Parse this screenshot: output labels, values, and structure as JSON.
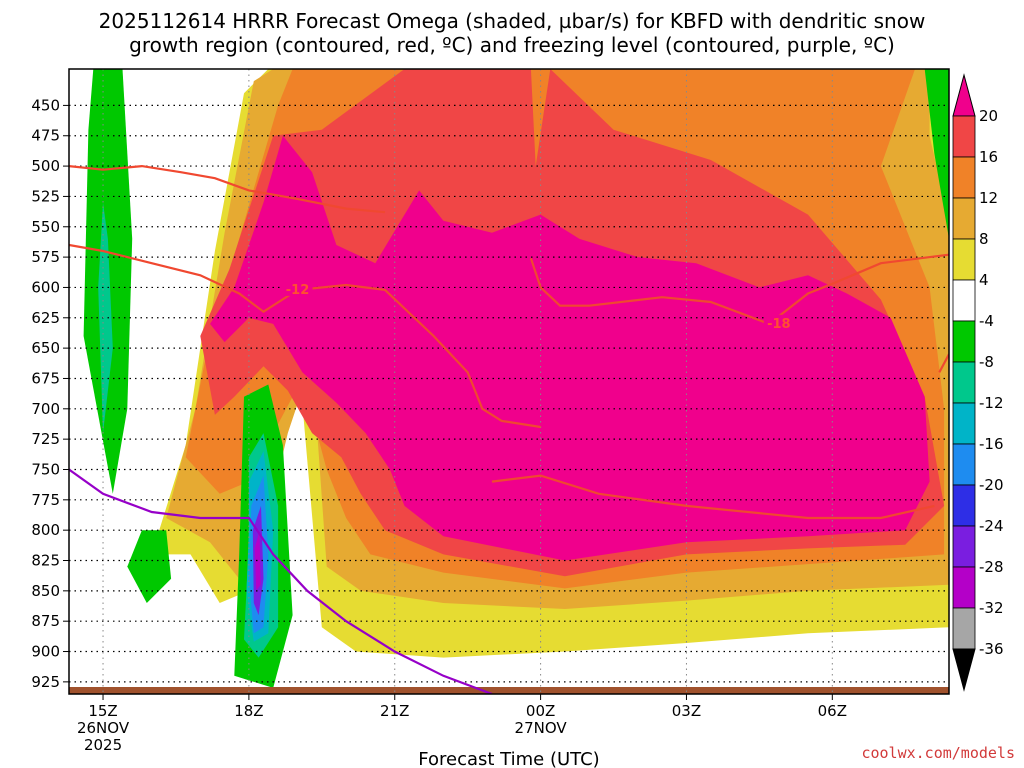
{
  "chart_data": {
    "type": "heatmap",
    "title_lines": [
      "2025112614 HRRR Forecast Omega (shaded, µbar/s) for KBFD with dendritic snow",
      "growth region (contoured, red, ºC) and freezing level (contoured, purple, ºC)"
    ],
    "xlabel": "Forecast Time (UTC)",
    "credit": "coolwx.com/models",
    "x_range_hours": [
      14.3,
      32.4
    ],
    "y_range_hpa": [
      420,
      935
    ],
    "x_ticks": [
      {
        "hour": 15,
        "lines": [
          "15Z",
          "26NOV",
          "2025"
        ]
      },
      {
        "hour": 18,
        "lines": [
          "18Z"
        ]
      },
      {
        "hour": 21,
        "lines": [
          "21Z"
        ]
      },
      {
        "hour": 24,
        "lines": [
          "00Z",
          "27NOV"
        ]
      },
      {
        "hour": 27,
        "lines": [
          "03Z"
        ]
      },
      {
        "hour": 30,
        "lines": [
          "06Z"
        ]
      }
    ],
    "y_ticks": [
      450,
      475,
      500,
      525,
      550,
      575,
      600,
      625,
      650,
      675,
      700,
      725,
      750,
      775,
      800,
      825,
      850,
      875,
      900,
      925
    ],
    "colorbar": {
      "levels": [
        -36,
        -32,
        -28,
        -24,
        -20,
        -16,
        -12,
        -8,
        -4,
        4,
        8,
        12,
        16,
        20
      ],
      "labels": [
        "20",
        "16",
        "12",
        "8",
        "4",
        "-4",
        "-8",
        "-12",
        "-16",
        "-20",
        "-24",
        "-28",
        "-32",
        "-36"
      ],
      "colors": {
        "below_-36": "#000000",
        "-36_-32": "#a6a6a6",
        "-32_-28": "#b400c8",
        "-28_-24": "#7a1ee0",
        "-24_-20": "#2e2ee6",
        "-20_-16": "#1e8cf0",
        "-16_-12": "#00b4c8",
        "-12_-8": "#00c88c",
        "-8_-4": "#00c800",
        "-4_4": "#ffffff",
        "4_8": "#e6dc32",
        "8_12": "#e6aa32",
        "12_16": "#f08228",
        "16_20": "#f04646",
        "above_20": "#f0008c"
      }
    },
    "omega_regions": [
      {
        "level": "4_8",
        "points": [
          [
            16.0,
            820
          ],
          [
            16.7,
            730
          ],
          [
            17.3,
            570
          ],
          [
            17.9,
            440
          ],
          [
            18.4,
            420
          ],
          [
            32.4,
            420
          ],
          [
            32.4,
            880
          ],
          [
            29.5,
            885
          ],
          [
            27.0,
            893
          ],
          [
            24.5,
            900
          ],
          [
            22.0,
            905
          ],
          [
            20.2,
            900
          ],
          [
            19.5,
            880
          ],
          [
            19.0,
            650
          ],
          [
            18.5,
            780
          ],
          [
            18.0,
            850
          ],
          [
            17.4,
            860
          ],
          [
            16.8,
            820
          ]
        ]
      },
      {
        "level": "8_12",
        "points": [
          [
            16.3,
            790
          ],
          [
            16.9,
            700
          ],
          [
            17.5,
            555
          ],
          [
            18.1,
            430
          ],
          [
            18.5,
            420
          ],
          [
            32.0,
            420
          ],
          [
            32.0,
            475
          ],
          [
            32.4,
            545
          ],
          [
            32.4,
            845
          ],
          [
            29.5,
            850
          ],
          [
            27.0,
            858
          ],
          [
            24.5,
            865
          ],
          [
            22.0,
            860
          ],
          [
            20.3,
            850
          ],
          [
            19.6,
            830
          ],
          [
            19.3,
            660
          ],
          [
            18.8,
            720
          ],
          [
            18.3,
            805
          ],
          [
            17.8,
            840
          ],
          [
            17.2,
            810
          ]
        ]
      },
      {
        "level": "12_16",
        "points": [
          [
            16.7,
            740
          ],
          [
            17.2,
            640
          ],
          [
            17.8,
            560
          ],
          [
            18.6,
            450
          ],
          [
            18.9,
            420
          ],
          [
            31.7,
            420
          ],
          [
            31.0,
            500
          ],
          [
            32.0,
            600
          ],
          [
            32.3,
            700
          ],
          [
            32.3,
            820
          ],
          [
            29.5,
            828
          ],
          [
            27.0,
            835
          ],
          [
            24.5,
            848
          ],
          [
            22.0,
            835
          ],
          [
            20.5,
            820
          ],
          [
            20.0,
            790
          ],
          [
            19.6,
            750
          ],
          [
            19.3,
            705
          ],
          [
            18.9,
            690
          ],
          [
            18.5,
            720
          ],
          [
            18.0,
            760
          ],
          [
            17.4,
            770
          ]
        ]
      },
      {
        "level": "16_20",
        "points": [
          [
            17.0,
            640
          ],
          [
            17.6,
            585
          ],
          [
            18.5,
            475
          ],
          [
            19.5,
            470
          ],
          [
            21.2,
            420
          ],
          [
            23.8,
            420
          ],
          [
            23.9,
            500
          ],
          [
            24.2,
            420
          ],
          [
            25.5,
            470
          ],
          [
            27.5,
            495
          ],
          [
            29.5,
            540
          ],
          [
            31.0,
            610
          ],
          [
            31.9,
            690
          ],
          [
            32.3,
            780
          ],
          [
            31.5,
            812
          ],
          [
            29.5,
            815
          ],
          [
            27.0,
            820
          ],
          [
            24.5,
            838
          ],
          [
            22.0,
            820
          ],
          [
            20.8,
            800
          ],
          [
            20.3,
            770
          ],
          [
            19.9,
            740
          ],
          [
            19.3,
            720
          ],
          [
            18.8,
            685
          ],
          [
            18.3,
            665
          ],
          [
            17.7,
            690
          ],
          [
            17.3,
            705
          ]
        ]
      },
      {
        "level": "above_20",
        "points": [
          [
            17.2,
            630
          ],
          [
            17.7,
            600
          ],
          [
            18.3,
            530
          ],
          [
            18.7,
            475
          ],
          [
            19.3,
            505
          ],
          [
            19.8,
            565
          ],
          [
            20.6,
            580
          ],
          [
            21.5,
            520
          ],
          [
            22.0,
            545
          ],
          [
            23.0,
            555
          ],
          [
            24.0,
            540
          ],
          [
            24.8,
            560
          ],
          [
            26.0,
            575
          ],
          [
            27.2,
            580
          ],
          [
            28.5,
            600
          ],
          [
            29.5,
            590
          ],
          [
            30.3,
            605
          ],
          [
            31.2,
            625
          ],
          [
            31.9,
            690
          ],
          [
            32.0,
            760
          ],
          [
            31.5,
            800
          ],
          [
            29.5,
            805
          ],
          [
            27.0,
            810
          ],
          [
            24.5,
            825
          ],
          [
            22.0,
            805
          ],
          [
            21.2,
            780
          ],
          [
            20.9,
            750
          ],
          [
            20.4,
            720
          ],
          [
            19.8,
            695
          ],
          [
            19.1,
            670
          ],
          [
            18.5,
            630
          ],
          [
            18.0,
            625
          ],
          [
            17.5,
            645
          ]
        ]
      },
      {
        "level": "-8_-4",
        "points": [
          [
            15.4,
            420
          ],
          [
            15.6,
            560
          ],
          [
            15.5,
            700
          ],
          [
            15.2,
            770
          ],
          [
            14.6,
            640
          ],
          [
            14.7,
            470
          ],
          [
            14.8,
            420
          ]
        ]
      },
      {
        "level": "-12_-8",
        "points": [
          [
            15.1,
            560
          ],
          [
            15.2,
            650
          ],
          [
            15.0,
            720
          ],
          [
            14.9,
            600
          ],
          [
            15.0,
            530
          ]
        ]
      },
      {
        "level": "-8_-4",
        "points": [
          [
            15.8,
            800
          ],
          [
            16.3,
            800
          ],
          [
            16.4,
            840
          ],
          [
            15.9,
            860
          ],
          [
            15.5,
            830
          ]
        ]
      },
      {
        "level": "-8_-4",
        "points": [
          [
            17.9,
            690
          ],
          [
            18.4,
            680
          ],
          [
            18.7,
            730
          ],
          [
            18.9,
            870
          ],
          [
            18.5,
            930
          ],
          [
            17.7,
            920
          ],
          [
            17.8,
            820
          ]
        ]
      },
      {
        "level": "-12_-8",
        "points": [
          [
            18.0,
            740
          ],
          [
            18.3,
            720
          ],
          [
            18.6,
            780
          ],
          [
            18.6,
            880
          ],
          [
            18.2,
            905
          ],
          [
            17.9,
            890
          ],
          [
            18.0,
            810
          ]
        ]
      },
      {
        "level": "-16_-12",
        "points": [
          [
            18.0,
            760
          ],
          [
            18.3,
            735
          ],
          [
            18.5,
            800
          ],
          [
            18.4,
            885
          ],
          [
            18.1,
            892
          ],
          [
            17.95,
            850
          ],
          [
            18.0,
            800
          ]
        ]
      },
      {
        "level": "-20_-16",
        "points": [
          [
            18.05,
            780
          ],
          [
            18.3,
            755
          ],
          [
            18.4,
            820
          ],
          [
            18.3,
            880
          ],
          [
            18.1,
            885
          ],
          [
            18.0,
            840
          ]
        ]
      },
      {
        "level": "-28_-24",
        "points": [
          [
            18.08,
            800
          ],
          [
            18.25,
            780
          ],
          [
            18.3,
            840
          ],
          [
            18.2,
            870
          ],
          [
            18.1,
            860
          ]
        ]
      },
      {
        "level": "-32_-28",
        "points": [
          [
            18.12,
            815
          ],
          [
            18.22,
            800
          ],
          [
            18.24,
            845
          ],
          [
            18.15,
            850
          ]
        ]
      },
      {
        "level": "-8_-4",
        "points": [
          [
            31.9,
            420
          ],
          [
            32.4,
            420
          ],
          [
            32.4,
            560
          ],
          [
            32.1,
            490
          ]
        ]
      }
    ],
    "contours": [
      {
        "kind": "dgz_-12",
        "color": "#f04830",
        "points": [
          [
            14.3,
            500
          ],
          [
            15.0,
            503
          ],
          [
            15.8,
            500
          ],
          [
            16.6,
            505
          ],
          [
            17.3,
            510
          ],
          [
            18.0,
            520
          ],
          [
            19.0,
            527
          ],
          [
            20.0,
            535
          ],
          [
            20.8,
            538
          ]
        ],
        "label": ""
      },
      {
        "kind": "dgz_-12",
        "color": "#f04830",
        "points": [
          [
            14.3,
            565
          ],
          [
            15.0,
            570
          ],
          [
            16.0,
            580
          ],
          [
            17.0,
            590
          ],
          [
            17.8,
            605
          ],
          [
            18.3,
            620
          ],
          [
            19.0,
            602
          ],
          [
            20.0,
            598
          ],
          [
            20.8,
            602
          ],
          [
            21.8,
            640
          ],
          [
            22.5,
            670
          ],
          [
            22.8,
            700
          ],
          [
            23.2,
            710
          ],
          [
            24.0,
            715
          ]
        ],
        "label": "-12",
        "label_at": [
          19.0,
          602
        ]
      },
      {
        "kind": "dgz_-18",
        "color": "#f04830",
        "points": [
          [
            23.8,
            576
          ],
          [
            24.0,
            600
          ],
          [
            24.4,
            615
          ],
          [
            25.0,
            615
          ],
          [
            26.5,
            608
          ],
          [
            27.5,
            612
          ],
          [
            28.7,
            630
          ],
          [
            29.5,
            605
          ],
          [
            30.0,
            597
          ],
          [
            31.0,
            580
          ],
          [
            32.4,
            573
          ]
        ],
        "label": "-18",
        "label_at": [
          28.9,
          630
        ]
      },
      {
        "kind": "dgz_-18",
        "color": "#f04830",
        "points": [
          [
            23.0,
            760
          ],
          [
            24.0,
            755
          ],
          [
            25.2,
            770
          ],
          [
            27.0,
            780
          ],
          [
            29.5,
            790
          ],
          [
            31.0,
            790
          ],
          [
            32.1,
            780
          ]
        ],
        "label": ""
      },
      {
        "kind": "dgz_-18",
        "color": "#f04830",
        "points": [
          [
            32.2,
            670
          ],
          [
            32.4,
            655
          ]
        ],
        "label": ""
      },
      {
        "kind": "freezing_level",
        "color": "#9600c8",
        "points": [
          [
            14.3,
            750
          ],
          [
            15.0,
            770
          ],
          [
            16.0,
            785
          ],
          [
            17.0,
            790
          ],
          [
            18.0,
            790
          ],
          [
            18.5,
            820
          ],
          [
            19.2,
            850
          ],
          [
            20.0,
            875
          ],
          [
            21.0,
            900
          ],
          [
            22.0,
            920
          ],
          [
            23.0,
            935
          ]
        ],
        "label": ""
      }
    ]
  }
}
